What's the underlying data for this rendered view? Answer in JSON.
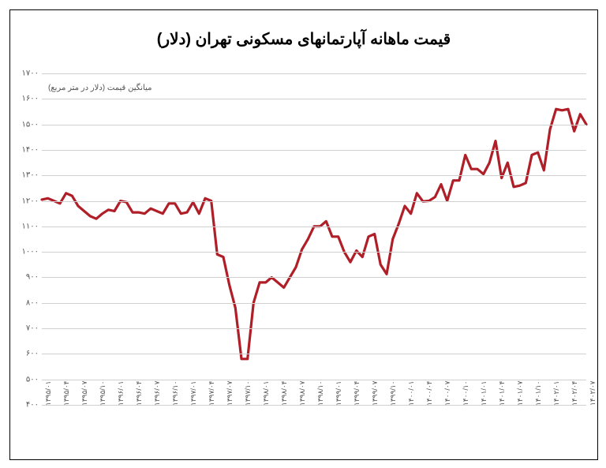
{
  "chart": {
    "type": "line",
    "title": "قیمت ماهانه آپارتمانهای مسکونی تهران (دلار)",
    "title_fontsize": 20,
    "y_axis_label": "میانگین قیمت (دلار در متر مربع)",
    "ylim": [
      400,
      1700
    ],
    "ytick_step": 100,
    "y_ticks": [
      400,
      500,
      600,
      700,
      800,
      900,
      1000,
      1100,
      1200,
      1300,
      1400,
      1500,
      1600,
      1700
    ],
    "y_tick_labels": [
      "۴۰۰",
      "۵۰۰",
      "۶۰۰",
      "۷۰۰",
      "۸۰۰",
      "۹۰۰",
      "۱۰۰۰",
      "۱۱۰۰",
      "۱۲۰۰",
      "۱۳۰۰",
      "۱۴۰۰",
      "۱۵۰۰",
      "۱۶۰۰",
      "۱۷۰۰"
    ],
    "x_labels": [
      "۱۳۹۵/۰۱",
      "۱۳۹۵/۰۴",
      "۱۳۹۵/۰۷",
      "۱۳۹۵/۱۰",
      "۱۳۹۶/۰۱",
      "۱۳۹۶/۰۴",
      "۱۳۹۶/۰۷",
      "۱۳۹۶/۱۰",
      "۱۳۹۷/۰۱",
      "۱۳۹۷/۰۴",
      "۱۳۹۷/۰۷",
      "۱۳۹۷/۱۰",
      "۱۳۹۸/۰۱",
      "۱۳۹۸/۰۴",
      "۱۳۹۸/۰۷",
      "۱۳۹۸/۱۰",
      "۱۳۹۹/۰۱",
      "۱۳۹۹/۰۴",
      "۱۳۹۹/۰۷",
      "۱۳۹۹/۱۰",
      "۱۴۰۰/۰۱",
      "۱۴۰۰/۰۴",
      "۱۴۰۰/۰۷",
      "۱۴۰۰/۱۰",
      "۱۴۰۱/۰۱",
      "۱۴۰۱/۰۴",
      "۱۴۰۱/۰۷",
      "۱۴۰۱/۱۰",
      "۱۴۰۲/۰۱",
      "۱۴۰۲/۰۴",
      "۱۴۰۲/۰۷"
    ],
    "x_count": 91,
    "values": [
      1205,
      1210,
      1200,
      1190,
      1230,
      1220,
      1180,
      1160,
      1140,
      1130,
      1150,
      1165,
      1160,
      1200,
      1195,
      1155,
      1155,
      1150,
      1170,
      1160,
      1150,
      1190,
      1190,
      1150,
      1155,
      1195,
      1150,
      1210,
      1200,
      990,
      980,
      870,
      780,
      580,
      580,
      800,
      880,
      880,
      900,
      880,
      860,
      900,
      940,
      1010,
      1050,
      1100,
      1100,
      1120,
      1060,
      1060,
      1000,
      960,
      1005,
      980,
      1060,
      1070,
      950,
      913,
      1050,
      1110,
      1180,
      1150,
      1230,
      1198,
      1200,
      1215,
      1265,
      1200,
      1280,
      1280,
      1380,
      1325,
      1325,
      1305,
      1350,
      1435,
      1290,
      1350,
      1255,
      1260,
      1270,
      1380,
      1390,
      1320,
      1480,
      1560,
      1555,
      1560,
      1473,
      1540,
      1500
    ],
    "line_color": "#b01e28",
    "line_width": 3.2,
    "background_color": "#ffffff",
    "grid_color": "#d0d0d0",
    "axis_label_color": "#555555",
    "axis_label_fontsize": 10,
    "tick_fontsize": 10
  }
}
